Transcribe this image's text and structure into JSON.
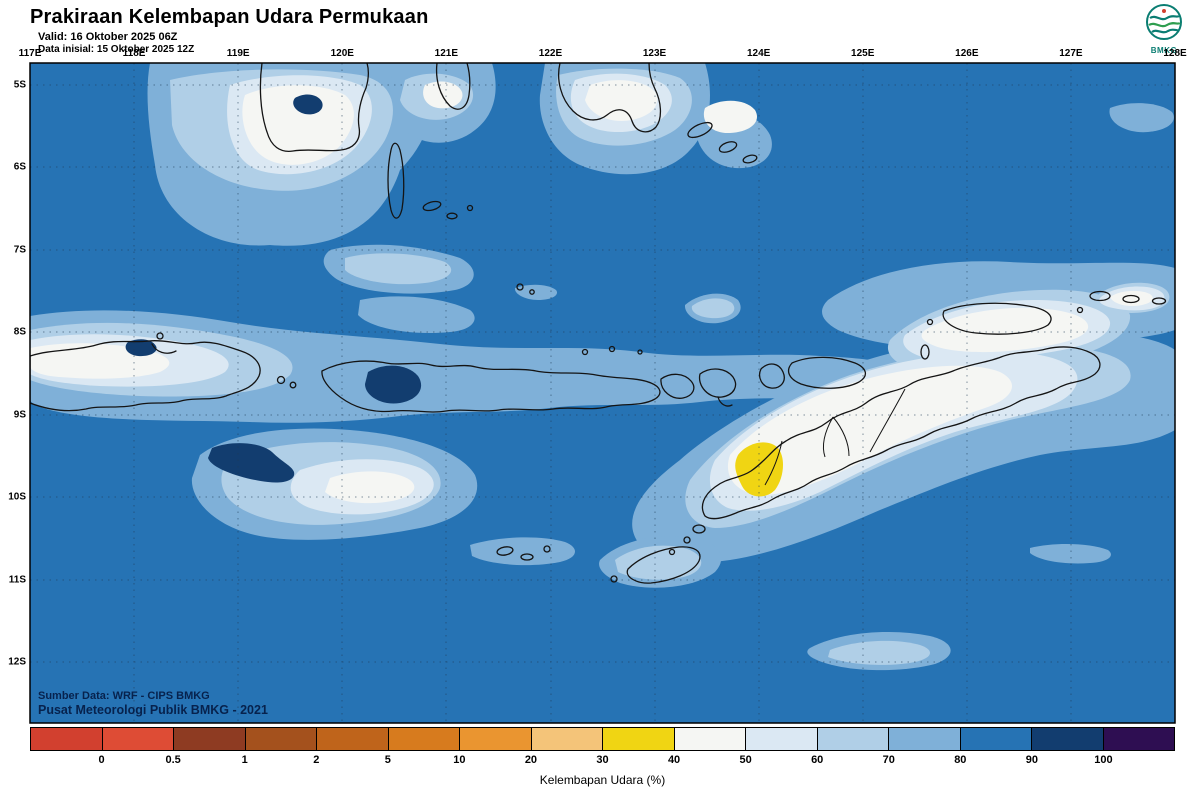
{
  "header": {
    "title": "Prakiraan Kelembapan Udara Permukaan",
    "valid_line": "Valid: 16 Oktober 2025 06Z",
    "init_line": "Data inisial: 15 Oktober 2025 12Z",
    "logo_text": "BMKG"
  },
  "map": {
    "lon_labels": [
      "117E",
      "118E",
      "119E",
      "120E",
      "121E",
      "122E",
      "123E",
      "124E",
      "125E",
      "126E",
      "127E",
      "128E"
    ],
    "lat_labels": [
      "5S",
      "6S",
      "7S",
      "8S",
      "9S",
      "10S",
      "11S",
      "12S"
    ],
    "credit_line1": "Sumber Data: WRF - CIPS BMKG",
    "credit_line2": "Pusat Meteorologi Publik BMKG -  2021",
    "ocean_color": "#2673b4"
  },
  "legend": {
    "caption": "Kelembapan Udara (%)",
    "tick_labels": [
      "0",
      "0.5",
      "1",
      "2",
      "5",
      "10",
      "20",
      "30",
      "40",
      "50",
      "60",
      "70",
      "80",
      "90",
      "100"
    ],
    "cell_colors": [
      "#d2402f",
      "#de4c35",
      "#8e3b22",
      "#a4511d",
      "#bf641b",
      "#d77b1e",
      "#ea9530",
      "#f4c479",
      "#f0d513",
      "#f5f6f3",
      "#dbe8f3",
      "#b0cfe7",
      "#7fb0d8",
      "#2673b4",
      "#123d6f",
      "#2e0e52"
    ],
    "units": "%"
  }
}
